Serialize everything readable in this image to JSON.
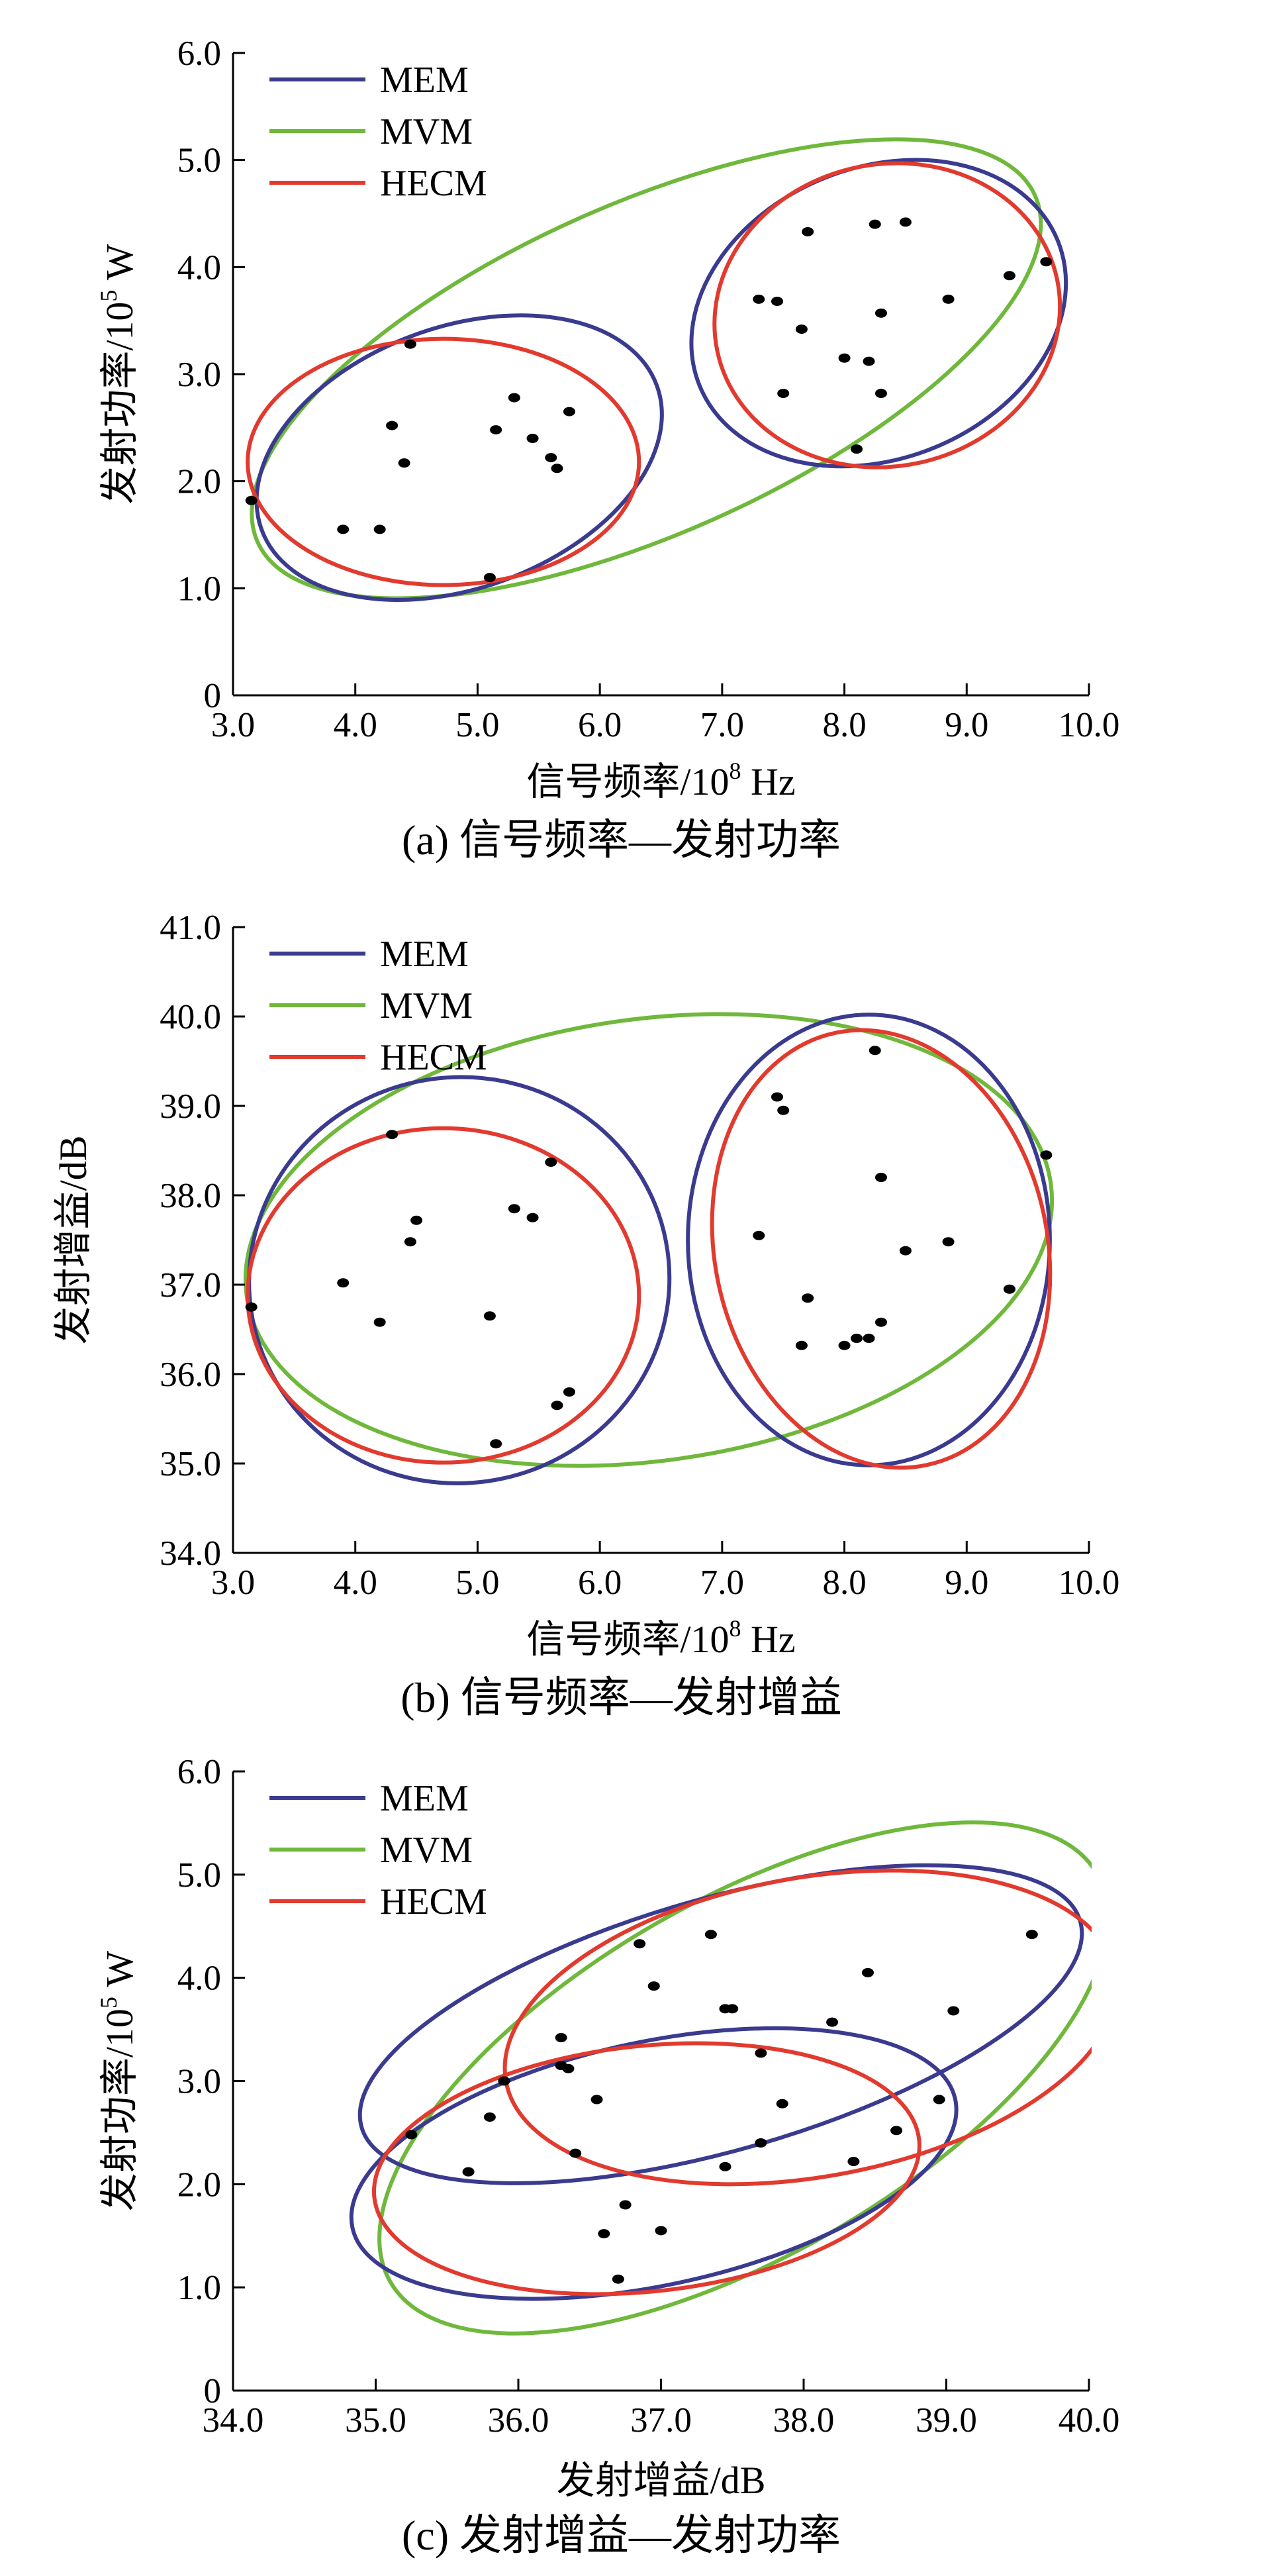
{
  "colors": {
    "MEM": "#3a3b8f",
    "MVM": "#6fb83c",
    "HECM": "#e23a2e"
  },
  "chart_data": [
    {
      "type": "scatter",
      "caption": "(a)  信号频率—发射功率",
      "xlabel_main": "信号频率/10",
      "xlabel_sup": "8",
      "xlabel_unit": " Hz",
      "ylabel_main": "发射功率/10",
      "ylabel_sup": "5",
      "ylabel_unit": " W",
      "xlim": [
        3.0,
        10.0
      ],
      "ylim": [
        0,
        6.0
      ],
      "xticks": [
        3.0,
        4.0,
        5.0,
        6.0,
        7.0,
        8.0,
        9.0,
        10.0
      ],
      "yticks": [
        0,
        1.0,
        2.0,
        3.0,
        4.0,
        5.0,
        6.0
      ],
      "xtick_labels": [
        "3.0",
        "4.0",
        "5.0",
        "6.0",
        "7.0",
        "8.0",
        "9.0",
        "10.0"
      ],
      "ytick_labels": [
        "0",
        "1.0",
        "2.0",
        "3.0",
        "4.0",
        "5.0",
        "6.0"
      ],
      "legend": [
        "MEM",
        "MVM",
        "HECM"
      ],
      "points": [
        [
          3.15,
          1.82
        ],
        [
          3.9,
          1.55
        ],
        [
          4.2,
          1.55
        ],
        [
          4.3,
          2.52
        ],
        [
          4.4,
          2.17
        ],
        [
          4.45,
          3.28
        ],
        [
          5.1,
          1.1
        ],
        [
          5.15,
          2.48
        ],
        [
          5.3,
          2.78
        ],
        [
          5.45,
          2.4
        ],
        [
          5.6,
          2.22
        ],
        [
          5.65,
          2.12
        ],
        [
          5.75,
          2.65
        ],
        [
          7.3,
          3.7
        ],
        [
          7.45,
          3.68
        ],
        [
          7.5,
          2.82
        ],
        [
          7.65,
          3.42
        ],
        [
          7.7,
          4.33
        ],
        [
          8.0,
          3.15
        ],
        [
          8.1,
          2.3
        ],
        [
          8.2,
          3.12
        ],
        [
          8.25,
          4.4
        ],
        [
          8.3,
          3.57
        ],
        [
          8.3,
          2.82
        ],
        [
          8.5,
          4.42
        ],
        [
          8.85,
          3.7
        ],
        [
          9.35,
          3.92
        ],
        [
          9.65,
          4.05
        ]
      ],
      "ellipses": [
        {
          "series": "MVM",
          "cx": 6.38,
          "cy": 3.05,
          "rx": 3.48,
          "ry": 1.54,
          "angle_deg": 24
        },
        {
          "series": "MEM",
          "cx": 4.85,
          "cy": 2.22,
          "rx": 1.72,
          "ry": 1.22,
          "angle_deg": 20
        },
        {
          "series": "HECM",
          "cx": 4.72,
          "cy": 2.18,
          "rx": 1.6,
          "ry": 1.15,
          "angle_deg": 0
        },
        {
          "series": "MEM",
          "cx": 8.28,
          "cy": 3.57,
          "rx": 1.58,
          "ry": 1.36,
          "angle_deg": 22
        },
        {
          "series": "HECM",
          "cx": 8.35,
          "cy": 3.55,
          "rx": 1.42,
          "ry": 1.41,
          "angle_deg": 12
        }
      ]
    },
    {
      "type": "scatter",
      "caption": "(b)  信号频率—发射增益",
      "xlabel_main": "信号频率/10",
      "xlabel_sup": "8",
      "xlabel_unit": " Hz",
      "ylabel_main": "发射增益/dB",
      "ylabel_sup": "",
      "ylabel_unit": "",
      "xlim": [
        3.0,
        10.0
      ],
      "ylim": [
        34.0,
        41.0
      ],
      "xticks": [
        3.0,
        4.0,
        5.0,
        6.0,
        7.0,
        8.0,
        9.0,
        10.0
      ],
      "yticks": [
        34.0,
        35.0,
        36.0,
        37.0,
        38.0,
        39.0,
        40.0,
        41.0
      ],
      "xtick_labels": [
        "3.0",
        "4.0",
        "5.0",
        "6.0",
        "7.0",
        "8.0",
        "9.0",
        "10.0"
      ],
      "ytick_labels": [
        "34.0",
        "35.0",
        "36.0",
        "37.0",
        "38.0",
        "39.0",
        "40.0",
        "41.0"
      ],
      "legend": [
        "MEM",
        "MVM",
        "HECM"
      ],
      "points": [
        [
          3.15,
          36.75
        ],
        [
          3.9,
          37.02
        ],
        [
          4.2,
          36.58
        ],
        [
          4.3,
          38.68
        ],
        [
          4.45,
          37.48
        ],
        [
          4.5,
          37.72
        ],
        [
          5.1,
          36.65
        ],
        [
          5.15,
          35.22
        ],
        [
          5.3,
          37.85
        ],
        [
          5.45,
          37.75
        ],
        [
          5.6,
          38.37
        ],
        [
          5.65,
          35.65
        ],
        [
          5.75,
          35.8
        ],
        [
          7.3,
          37.55
        ],
        [
          7.45,
          39.1
        ],
        [
          7.5,
          38.95
        ],
        [
          7.65,
          36.32
        ],
        [
          7.7,
          36.85
        ],
        [
          8.0,
          36.32
        ],
        [
          8.1,
          36.4
        ],
        [
          8.2,
          36.4
        ],
        [
          8.25,
          39.62
        ],
        [
          8.3,
          38.2
        ],
        [
          8.3,
          36.58
        ],
        [
          8.5,
          37.38
        ],
        [
          8.85,
          37.48
        ],
        [
          9.35,
          36.95
        ],
        [
          9.65,
          38.45
        ]
      ],
      "ellipses": [
        {
          "series": "MVM",
          "cx": 6.4,
          "cy": 37.5,
          "rx": 3.32,
          "ry": 2.47,
          "angle_deg": 8
        },
        {
          "series": "MEM",
          "cx": 4.85,
          "cy": 37.05,
          "rx": 1.72,
          "ry": 2.27,
          "angle_deg": 8
        },
        {
          "series": "HECM",
          "cx": 4.72,
          "cy": 36.88,
          "rx": 1.6,
          "ry": 1.87,
          "angle_deg": 0
        },
        {
          "series": "MEM",
          "cx": 8.2,
          "cy": 37.5,
          "rx": 1.48,
          "ry": 2.52,
          "angle_deg": 0
        },
        {
          "series": "HECM",
          "cx": 8.3,
          "cy": 37.4,
          "rx": 1.36,
          "ry": 2.47,
          "angle_deg": 12
        }
      ]
    },
    {
      "type": "scatter",
      "caption": "(c)  发射增益—发射功率",
      "xlabel_main": "发射增益/dB",
      "xlabel_sup": "",
      "xlabel_unit": "",
      "ylabel_main": "发射功率/10",
      "ylabel_sup": "5",
      "ylabel_unit": " W",
      "xlim": [
        34.0,
        40.0
      ],
      "ylim": [
        0,
        6.0
      ],
      "xticks": [
        34.0,
        35.0,
        36.0,
        37.0,
        38.0,
        39.0,
        40.0
      ],
      "yticks": [
        0,
        1.0,
        2.0,
        3.0,
        4.0,
        5.0,
        6.0
      ],
      "xtick_labels": [
        "34.0",
        "35.0",
        "36.0",
        "37.0",
        "38.0",
        "39.0",
        "40.0"
      ],
      "ytick_labels": [
        "0",
        "1.0",
        "2.0",
        "3.0",
        "4.0",
        "5.0",
        "6.0"
      ],
      "legend": [
        "MEM",
        "MVM",
        "HECM"
      ],
      "points": [
        [
          35.25,
          2.48
        ],
        [
          35.65,
          2.12
        ],
        [
          35.8,
          2.65
        ],
        [
          35.9,
          3.0
        ],
        [
          36.3,
          3.42
        ],
        [
          36.3,
          3.15
        ],
        [
          36.35,
          3.12
        ],
        [
          36.4,
          2.3
        ],
        [
          36.55,
          2.82
        ],
        [
          36.6,
          1.52
        ],
        [
          36.7,
          1.08
        ],
        [
          36.75,
          1.8
        ],
        [
          36.85,
          4.33
        ],
        [
          36.95,
          3.92
        ],
        [
          37.0,
          1.55
        ],
        [
          37.35,
          4.42
        ],
        [
          37.45,
          3.7
        ],
        [
          37.45,
          2.17
        ],
        [
          37.5,
          3.7
        ],
        [
          37.7,
          3.27
        ],
        [
          37.7,
          2.4
        ],
        [
          37.85,
          2.78
        ],
        [
          38.2,
          3.57
        ],
        [
          38.35,
          2.22
        ],
        [
          38.45,
          4.05
        ],
        [
          38.65,
          2.52
        ],
        [
          38.95,
          2.82
        ],
        [
          39.05,
          3.68
        ],
        [
          39.6,
          4.42
        ]
      ],
      "ellipses": [
        {
          "series": "MVM",
          "cx": 37.58,
          "cy": 3.03,
          "rx": 2.86,
          "ry": 1.72,
          "angle_deg": 30
        },
        {
          "series": "MEM",
          "cx": 37.42,
          "cy": 3.55,
          "rx": 2.62,
          "ry": 1.22,
          "angle_deg": 16
        },
        {
          "series": "MEM",
          "cx": 36.95,
          "cy": 2.2,
          "rx": 2.16,
          "ry": 1.18,
          "angle_deg": 12
        },
        {
          "series": "HECM",
          "cx": 38.05,
          "cy": 3.52,
          "rx": 2.17,
          "ry": 1.45,
          "angle_deg": 10
        },
        {
          "series": "HECM",
          "cx": 36.9,
          "cy": 2.15,
          "rx": 1.92,
          "ry": 1.19,
          "angle_deg": 6
        }
      ]
    }
  ]
}
